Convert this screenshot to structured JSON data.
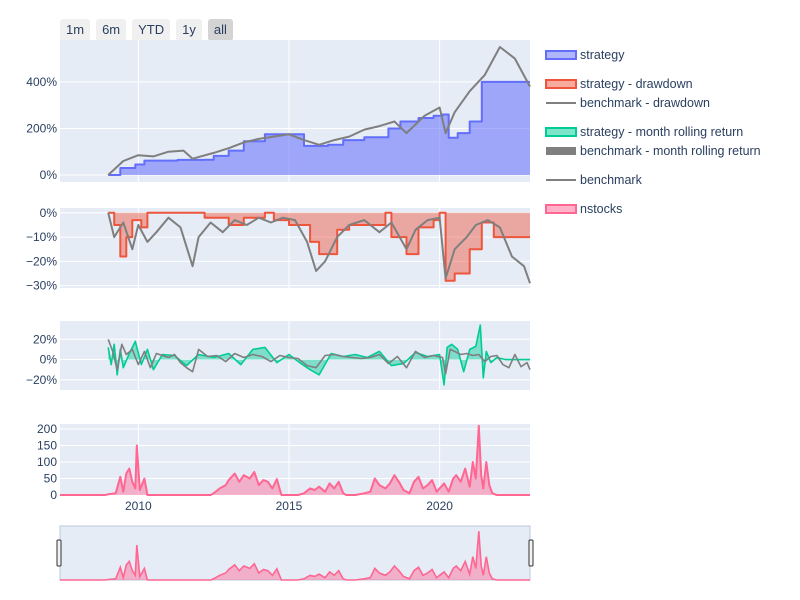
{
  "range_buttons": [
    {
      "label": "1m",
      "active": false
    },
    {
      "label": "6m",
      "active": false
    },
    {
      "label": "YTD",
      "active": false
    },
    {
      "label": "1y",
      "active": false
    },
    {
      "label": "all",
      "active": true
    }
  ],
  "colors": {
    "strategy": "#636efa",
    "strategy_fill": "rgba(99,110,250,0.55)",
    "drawdown": "#ef553b",
    "drawdown_fill": "rgba(239,85,59,0.45)",
    "benchmark": "#7f7f7f",
    "rolling": "#00cc96",
    "nstocks": "#ff6692",
    "nstocks_fill": "rgba(255,102,146,0.45)",
    "plot_bg": "#e5ecf6"
  },
  "legend": [
    {
      "label": "strategy",
      "color": "#636efa",
      "kind": "fill"
    },
    {
      "label": "strategy - drawdown",
      "color": "#ef553b",
      "kind": "fill"
    },
    {
      "label": "benchmark - drawdown",
      "color": "#7f7f7f",
      "kind": "line"
    },
    {
      "label": "strategy - month rolling return",
      "color": "#00cc96",
      "kind": "fill"
    },
    {
      "label": "benchmark - month rolling return",
      "color": "#7f7f7f",
      "kind": "thick"
    },
    {
      "label": "benchmark",
      "color": "#7f7f7f",
      "kind": "line"
    },
    {
      "label": "nstocks",
      "color": "#ff6692",
      "kind": "fill"
    }
  ],
  "chart_data": [
    {
      "type": "area",
      "panel": "cumulative",
      "x_range": [
        2007.4,
        2023.0
      ],
      "ylim": [
        -0.3,
        5.8
      ],
      "yticks": [
        {
          "v": 0,
          "label": "0%"
        },
        {
          "v": 2,
          "label": "200%"
        },
        {
          "v": 4,
          "label": "400%"
        }
      ],
      "series": [
        {
          "name": "strategy",
          "kind": "step-area",
          "x": [
            2009.0,
            2009.4,
            2009.9,
            2010.2,
            2011.3,
            2012.2,
            2012.5,
            2013.0,
            2013.5,
            2014.2,
            2014.5,
            2015.5,
            2016.3,
            2016.8,
            2017.5,
            2018.3,
            2018.7,
            2019.3,
            2019.8,
            2020.1,
            2020.3,
            2020.6,
            2021.0,
            2021.4,
            2022.5,
            2023.0
          ],
          "y": [
            0,
            0.3,
            0.45,
            0.62,
            0.65,
            0.66,
            0.82,
            1.05,
            1.45,
            1.75,
            1.75,
            1.25,
            1.3,
            1.5,
            1.62,
            2.0,
            2.3,
            2.45,
            2.55,
            2.6,
            1.6,
            1.8,
            2.3,
            4.0,
            4.0,
            4.0
          ]
        },
        {
          "name": "benchmark",
          "kind": "line",
          "x": [
            2009.0,
            2009.5,
            2010.0,
            2010.5,
            2011.0,
            2011.5,
            2011.8,
            2012.5,
            2013.0,
            2013.5,
            2014.0,
            2014.5,
            2015.0,
            2015.5,
            2016.0,
            2016.5,
            2017.0,
            2017.5,
            2018.0,
            2018.5,
            2018.9,
            2019.5,
            2020.0,
            2020.2,
            2020.5,
            2021.0,
            2021.5,
            2022.0,
            2022.5,
            2023.0
          ],
          "y": [
            0,
            0.6,
            0.85,
            0.8,
            1.0,
            1.05,
            0.7,
            0.95,
            1.15,
            1.4,
            1.55,
            1.65,
            1.75,
            1.5,
            1.3,
            1.5,
            1.65,
            1.95,
            2.1,
            2.3,
            1.8,
            2.55,
            2.9,
            1.8,
            2.7,
            3.6,
            4.3,
            5.5,
            5.0,
            3.8
          ]
        }
      ]
    },
    {
      "type": "area",
      "panel": "drawdown",
      "ylim": [
        -0.31,
        0.02
      ],
      "yticks": [
        {
          "v": 0,
          "label": "0%"
        },
        {
          "v": -0.1,
          "label": "−10%"
        },
        {
          "v": -0.2,
          "label": "−20%"
        },
        {
          "v": -0.3,
          "label": "−30%"
        }
      ],
      "series": [
        {
          "name": "strategy - drawdown",
          "kind": "step-area",
          "x": [
            2009.0,
            2009.2,
            2009.4,
            2009.6,
            2009.8,
            2010.1,
            2010.3,
            2011.3,
            2012.2,
            2013.0,
            2013.5,
            2014.2,
            2014.5,
            2015.0,
            2015.7,
            2016.0,
            2016.3,
            2016.6,
            2017.0,
            2017.4,
            2018.2,
            2018.4,
            2018.9,
            2019.3,
            2019.8,
            2020.0,
            2020.2,
            2020.5,
            2021.0,
            2021.4,
            2021.8,
            2022.5,
            2023.0
          ],
          "y": [
            0,
            -0.05,
            -0.18,
            -0.1,
            -0.03,
            -0.06,
            0,
            0,
            -0.02,
            -0.05,
            -0.02,
            0,
            -0.03,
            -0.05,
            -0.12,
            -0.17,
            -0.17,
            -0.07,
            -0.05,
            -0.05,
            0,
            -0.1,
            -0.17,
            -0.06,
            -0.03,
            0,
            -0.28,
            -0.25,
            -0.15,
            -0.04,
            -0.1,
            -0.1,
            -0.1
          ]
        },
        {
          "name": "benchmark - drawdown",
          "kind": "line",
          "x": [
            2009.0,
            2009.2,
            2009.5,
            2009.8,
            2010.0,
            2010.3,
            2010.6,
            2011.0,
            2011.4,
            2011.8,
            2012.0,
            2012.4,
            2012.8,
            2013.2,
            2013.6,
            2014.0,
            2014.4,
            2014.8,
            2015.2,
            2015.6,
            2015.9,
            2016.2,
            2016.6,
            2017.0,
            2017.5,
            2018.0,
            2018.4,
            2018.9,
            2019.2,
            2019.6,
            2020.0,
            2020.2,
            2020.5,
            2020.9,
            2021.2,
            2021.6,
            2022.0,
            2022.4,
            2022.8,
            2023.0
          ],
          "y": [
            0,
            -0.1,
            -0.04,
            -0.15,
            -0.05,
            -0.12,
            -0.08,
            -0.02,
            -0.06,
            -0.22,
            -0.1,
            -0.04,
            -0.08,
            -0.03,
            -0.05,
            -0.02,
            -0.04,
            -0.02,
            -0.03,
            -0.12,
            -0.24,
            -0.2,
            -0.1,
            -0.05,
            -0.03,
            -0.08,
            -0.04,
            -0.15,
            -0.07,
            -0.03,
            -0.02,
            -0.27,
            -0.15,
            -0.1,
            -0.05,
            -0.03,
            -0.06,
            -0.18,
            -0.22,
            -0.29
          ]
        }
      ]
    },
    {
      "type": "area",
      "panel": "rolling",
      "ylim": [
        -0.3,
        0.38
      ],
      "yticks": [
        {
          "v": 0.2,
          "label": "20%"
        },
        {
          "v": 0,
          "label": "0%"
        },
        {
          "v": -0.2,
          "label": "−20%"
        }
      ],
      "series": [
        {
          "name": "strategy - month rolling return",
          "kind": "area",
          "x": [
            2009.0,
            2009.1,
            2009.2,
            2009.3,
            2009.4,
            2009.5,
            2009.7,
            2009.9,
            2010.1,
            2010.3,
            2010.5,
            2010.8,
            2011.2,
            2011.6,
            2012.0,
            2012.5,
            2013.0,
            2013.4,
            2013.8,
            2014.2,
            2014.6,
            2015.0,
            2015.4,
            2015.7,
            2016.0,
            2016.4,
            2016.8,
            2017.2,
            2017.6,
            2018.0,
            2018.4,
            2018.8,
            2019.2,
            2019.6,
            2020.0,
            2020.15,
            2020.25,
            2020.4,
            2020.6,
            2020.8,
            2021.0,
            2021.2,
            2021.35,
            2021.45,
            2021.55,
            2021.7,
            2021.9,
            2022.2,
            2022.6,
            2023.0
          ],
          "y": [
            0.12,
            -0.05,
            0.15,
            -0.15,
            0.1,
            -0.08,
            0.06,
            0.18,
            -0.05,
            0.1,
            -0.1,
            0.05,
            0.04,
            -0.06,
            0.05,
            0.02,
            0.06,
            -0.05,
            0.1,
            0.12,
            -0.03,
            0.05,
            -0.04,
            -0.1,
            -0.15,
            0.06,
            0.03,
            0.05,
            0.02,
            0.08,
            -0.06,
            -0.04,
            0.07,
            0.03,
            0.05,
            -0.25,
            0.12,
            0.15,
            0.1,
            -0.12,
            0.1,
            0.13,
            0.34,
            -0.18,
            0.08,
            -0.03,
            0.02,
            0,
            0,
            0
          ]
        },
        {
          "name": "benchmark - month rolling return",
          "kind": "line",
          "x": [
            2009.0,
            2009.15,
            2009.3,
            2009.45,
            2009.6,
            2009.8,
            2010.0,
            2010.2,
            2010.4,
            2010.6,
            2010.8,
            2011.0,
            2011.2,
            2011.4,
            2011.6,
            2011.8,
            2012.0,
            2012.3,
            2012.6,
            2012.9,
            2013.2,
            2013.5,
            2013.8,
            2014.1,
            2014.4,
            2014.7,
            2015.0,
            2015.3,
            2015.6,
            2015.9,
            2016.2,
            2016.5,
            2016.8,
            2017.1,
            2017.4,
            2017.7,
            2018.0,
            2018.3,
            2018.6,
            2018.9,
            2019.2,
            2019.5,
            2019.8,
            2020.1,
            2020.2,
            2020.35,
            2020.5,
            2020.7,
            2020.9,
            2021.1,
            2021.3,
            2021.5,
            2021.7,
            2021.9,
            2022.1,
            2022.3,
            2022.5,
            2022.7,
            2022.9,
            2023.0
          ],
          "y": [
            0.2,
            0.08,
            -0.1,
            0.15,
            0.05,
            0.1,
            -0.05,
            0.08,
            -0.08,
            0.06,
            0.04,
            0.02,
            0.05,
            -0.03,
            -0.08,
            -0.12,
            0.1,
            0.03,
            0.04,
            -0.02,
            0.06,
            0.02,
            0.05,
            0.03,
            -0.02,
            0.04,
            0.02,
            0.01,
            -0.06,
            -0.08,
            0.04,
            0.05,
            0.03,
            0.02,
            0.01,
            0.02,
            0.05,
            -0.04,
            0.03,
            -0.08,
            0.08,
            0.02,
            0.04,
            0.02,
            -0.14,
            0.1,
            0.08,
            0.05,
            0.06,
            0.04,
            0.05,
            -0.02,
            0.03,
            0.04,
            -0.05,
            -0.08,
            0.05,
            -0.07,
            -0.03,
            -0.1
          ]
        }
      ]
    },
    {
      "type": "area",
      "panel": "nstocks",
      "ylim": [
        0,
        215
      ],
      "xlabel_ticks": [
        {
          "v": 2010,
          "label": "2010"
        },
        {
          "v": 2015,
          "label": "2015"
        },
        {
          "v": 2020,
          "label": "2020"
        }
      ],
      "yticks": [
        {
          "v": 0,
          "label": "0"
        },
        {
          "v": 50,
          "label": "50"
        },
        {
          "v": 100,
          "label": "100"
        },
        {
          "v": 150,
          "label": "150"
        },
        {
          "v": 200,
          "label": "200"
        }
      ],
      "series": [
        {
          "name": "nstocks",
          "kind": "area",
          "x": [
            2007.4,
            2008.9,
            2009.0,
            2009.25,
            2009.4,
            2009.5,
            2009.6,
            2009.7,
            2009.8,
            2009.9,
            2009.95,
            2010.05,
            2010.2,
            2010.3,
            2012.4,
            2012.5,
            2012.7,
            2012.9,
            2013.0,
            2013.2,
            2013.35,
            2013.5,
            2013.7,
            2013.85,
            2014.0,
            2014.15,
            2014.3,
            2014.45,
            2014.6,
            2014.75,
            2015.0,
            2015.3,
            2015.5,
            2015.7,
            2015.85,
            2016.0,
            2016.2,
            2016.35,
            2016.5,
            2016.65,
            2016.8,
            2016.9,
            2017.2,
            2017.5,
            2017.7,
            2017.85,
            2018.0,
            2018.2,
            2018.35,
            2018.5,
            2018.65,
            2018.8,
            2019.0,
            2019.15,
            2019.3,
            2019.45,
            2019.6,
            2019.75,
            2019.9,
            2020.0,
            2020.15,
            2020.3,
            2020.45,
            2020.55,
            2020.7,
            2020.85,
            2021.0,
            2021.1,
            2021.2,
            2021.3,
            2021.38,
            2021.45,
            2021.55,
            2021.65,
            2021.75,
            2021.9,
            2022.0,
            2023.0
          ],
          "y": [
            0,
            0,
            2,
            5,
            55,
            10,
            65,
            80,
            40,
            20,
            150,
            15,
            50,
            0,
            0,
            5,
            20,
            30,
            45,
            65,
            40,
            60,
            50,
            70,
            30,
            45,
            40,
            20,
            48,
            0,
            0,
            0,
            5,
            20,
            15,
            25,
            10,
            35,
            20,
            40,
            5,
            0,
            0,
            5,
            10,
            50,
            30,
            20,
            35,
            60,
            40,
            15,
            5,
            40,
            55,
            20,
            30,
            45,
            10,
            20,
            35,
            10,
            50,
            60,
            40,
            80,
            25,
            100,
            50,
            210,
            60,
            20,
            100,
            30,
            5,
            0,
            0,
            0
          ]
        }
      ]
    }
  ]
}
